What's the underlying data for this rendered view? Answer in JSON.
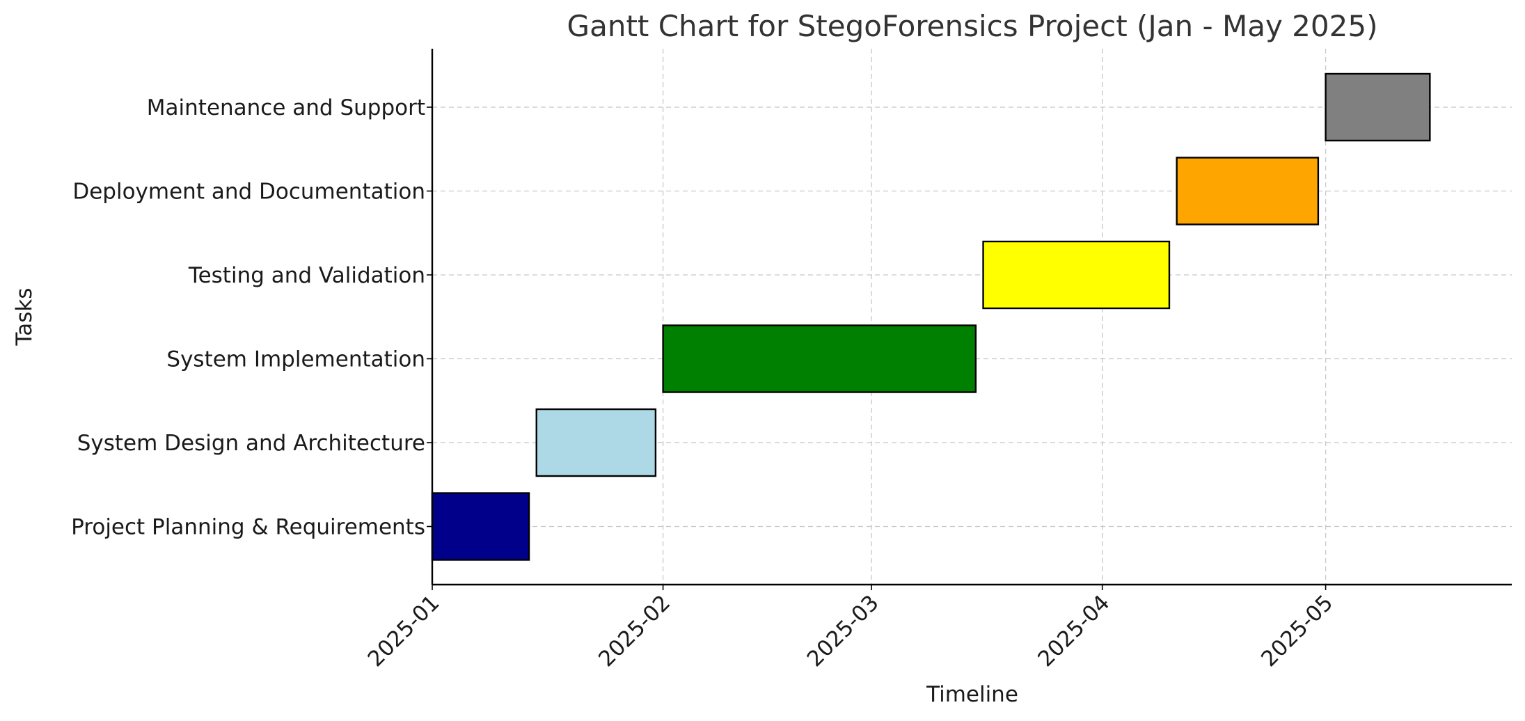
{
  "chart_data": {
    "type": "gantt",
    "title": "Gantt Chart for StegoForensics Project (Jan - May 2025)",
    "xlabel": "Timeline",
    "ylabel": "Tasks",
    "x_axis": "date",
    "xlim": [
      "2025-01-01",
      "2025-05-26"
    ],
    "x_ticks": [
      "2025-01",
      "2025-02",
      "2025-03",
      "2025-04",
      "2025-05"
    ],
    "grid": true,
    "legend": "none",
    "tasks": [
      {
        "name": "Project Planning & Requirements",
        "start": "2025-01-01",
        "end": "2025-01-14",
        "color": "#00008b"
      },
      {
        "name": "System Design and Architecture",
        "start": "2025-01-15",
        "end": "2025-01-31",
        "color": "#add8e6"
      },
      {
        "name": "System Implementation",
        "start": "2025-02-01",
        "end": "2025-03-15",
        "color": "#008000"
      },
      {
        "name": "Testing and Validation",
        "start": "2025-03-16",
        "end": "2025-04-10",
        "color": "#ffff00"
      },
      {
        "name": "Deployment and Documentation",
        "start": "2025-04-11",
        "end": "2025-04-30",
        "color": "#ffa500"
      },
      {
        "name": "Maintenance and Support",
        "start": "2025-05-01",
        "end": "2025-05-15",
        "color": "#808080"
      }
    ]
  }
}
